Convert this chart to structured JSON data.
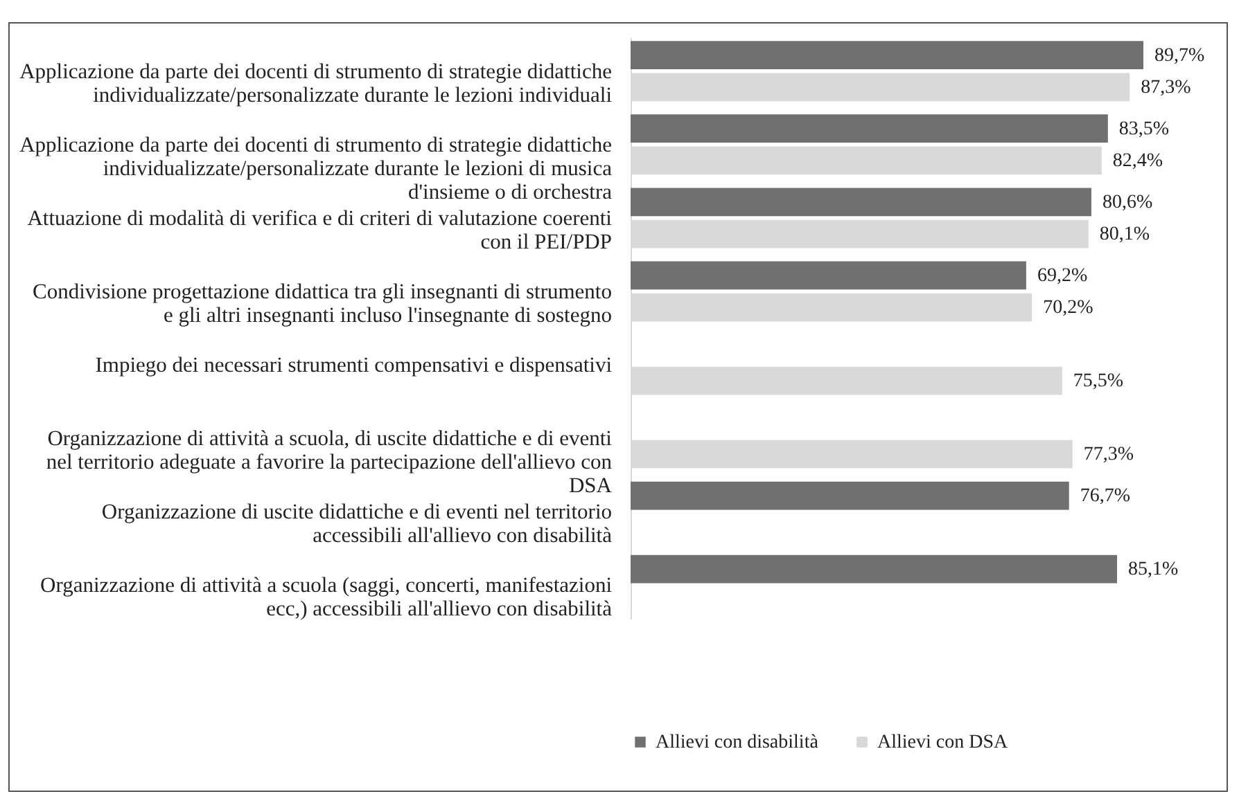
{
  "chart_data": {
    "type": "bar",
    "orientation": "horizontal",
    "categories": [
      "Applicazione da parte dei docenti di strumento di strategie didattiche individualizzate/personalizzate durante le lezioni individuali",
      "Applicazione da parte dei docenti di strumento di strategie didattiche individualizzate/personalizzate durante le lezioni di musica d'insieme o di orchestra",
      "Attuazione di modalità di verifica e di criteri di valutazione coerenti con il PEI/PDP",
      "Condivisione progettazione didattica tra gli insegnanti di strumento e gli altri insegnanti incluso l'insegnante di sostegno",
      "Impiego dei necessari strumenti compensativi e dispensativi",
      "Organizzazione di attività a scuola, di uscite didattiche e di eventi nel territorio adeguate a favorire la partecipazione dell'allievo con DSA",
      "Organizzazione di uscite didattiche e di eventi nel territorio accessibili all'allievo con disabilità",
      "Organizzazione di attività a scuola (saggi, concerti, manifestazioni ecc,) accessibili all'allievo con disabilità"
    ],
    "series": [
      {
        "name": "Allievi con disabilità",
        "color": "#707070",
        "values": [
          89.7,
          83.5,
          80.6,
          69.2,
          null,
          null,
          76.7,
          85.1
        ],
        "value_labels": [
          "89,7%",
          "83,5%",
          "80,6%",
          "69,2%",
          null,
          null,
          "76,7%",
          "85,1%"
        ]
      },
      {
        "name": "Allievi con DSA",
        "color": "#d9d9d9",
        "values": [
          87.3,
          82.4,
          80.1,
          70.2,
          75.5,
          77.3,
          null,
          null
        ],
        "value_labels": [
          "87,3%",
          "82,4%",
          "80,1%",
          "70,2%",
          "75,5%",
          "77,3%",
          null,
          null
        ]
      }
    ],
    "tick_labels": "y",
    "legend": "bottom"
  }
}
